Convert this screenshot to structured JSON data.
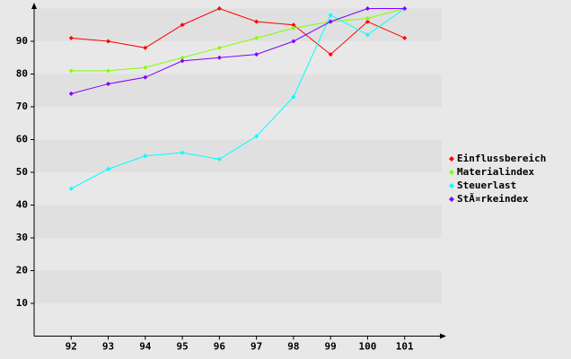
{
  "chart_data": {
    "type": "line",
    "x": [
      92,
      93,
      94,
      95,
      96,
      97,
      98,
      99,
      100,
      101
    ],
    "xlim": [
      91,
      102
    ],
    "xticks": [
      92,
      93,
      94,
      95,
      96,
      97,
      98,
      99,
      100,
      101
    ],
    "ylim": [
      0,
      100
    ],
    "yticks": [
      10,
      20,
      30,
      40,
      50,
      60,
      70,
      80,
      90
    ],
    "grid": "bands",
    "legend": "right",
    "series": [
      {
        "name": "Einflussbereich",
        "color": "#ff0000",
        "values": [
          91,
          90,
          88,
          95,
          100,
          96,
          95,
          86,
          96,
          91
        ]
      },
      {
        "name": "Materialindex",
        "color": "#80ff00",
        "values": [
          81,
          81,
          82,
          85,
          88,
          91,
          94,
          96,
          97,
          100
        ]
      },
      {
        "name": "Steuerlast",
        "color": "#00ffff",
        "values": [
          45,
          51,
          55,
          56,
          54,
          61,
          73,
          98,
          92,
          100
        ]
      },
      {
        "name": "StÃ¤rkeindex",
        "color": "#8000ff",
        "values": [
          74,
          77,
          79,
          84,
          85,
          86,
          90,
          96,
          100,
          100
        ]
      }
    ]
  }
}
